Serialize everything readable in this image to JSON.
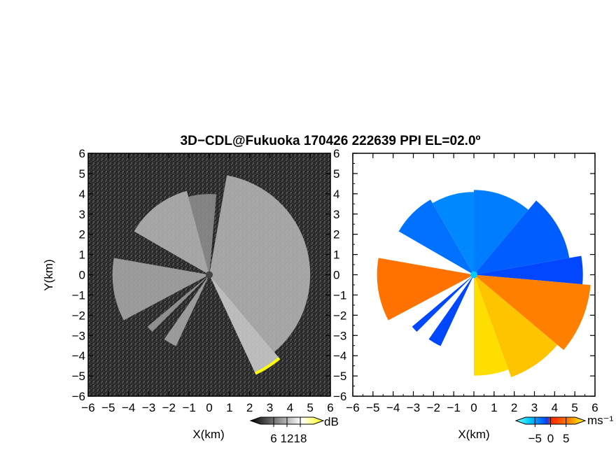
{
  "title": "3D−CDL@Fukuoka 170426 222639 PPI EL=02.0º",
  "ylabel": "Y(km)",
  "chart_data": [
    {
      "type": "heatmap",
      "panel": "left",
      "quantity": "reflectivity",
      "xlabel": "X(km)",
      "ylabel": "Y(km)",
      "xlim": [
        -6,
        6
      ],
      "ylim": [
        -6,
        6
      ],
      "x_ticks": [
        "−6",
        "−5",
        "−4",
        "−3",
        "−2",
        "−1",
        "0",
        "1",
        "2",
        "3",
        "4",
        "5",
        "6"
      ],
      "y_ticks": [
        "6",
        "5",
        "4",
        "3",
        "2",
        "1",
        "0",
        "−1",
        "−2",
        "−3",
        "−4",
        "−5",
        "−6"
      ],
      "colorbar": {
        "unit": "dB",
        "ticks": [
          "6",
          "12",
          "18"
        ],
        "tick_values": [
          6,
          12,
          18
        ],
        "range": [
          0,
          24
        ],
        "colors": [
          "#000000",
          "#ffffff",
          "#ffff00"
        ]
      },
      "sectors": [
        {
          "az_from": 10,
          "az_to": 140,
          "range_km": 5.0,
          "value_db": 14
        },
        {
          "az_from": 140,
          "az_to": 155,
          "range_km": 5.4,
          "value_db": 16
        },
        {
          "az_from": 242,
          "az_to": 280,
          "range_km": 4.8,
          "value_db": 13
        },
        {
          "az_from": 300,
          "az_to": 345,
          "range_km": 4.3,
          "value_db": 14
        },
        {
          "az_from": 345,
          "az_to": 365,
          "range_km": 4.0,
          "value_db": 11
        },
        {
          "az_from": 205,
          "az_to": 215,
          "range_km": 3.9,
          "value_db": 13
        },
        {
          "az_from": 225,
          "az_to": 230,
          "range_km": 4.0,
          "value_db": 12
        }
      ]
    },
    {
      "type": "heatmap",
      "panel": "right",
      "quantity": "doppler velocity",
      "xlabel": "X(km)",
      "xlim": [
        -6,
        6
      ],
      "ylim": [
        -6,
        6
      ],
      "x_ticks": [
        "−6",
        "−5",
        "−4",
        "−3",
        "−2",
        "−1",
        "0",
        "1",
        "2",
        "3",
        "4",
        "5",
        "6"
      ],
      "y_ticks": [
        "6",
        "5",
        "4",
        "3",
        "2",
        "1",
        "0",
        "−1",
        "−2",
        "−3",
        "−4",
        "−5",
        "−6"
      ],
      "colorbar": {
        "unit": "ms⁻¹",
        "ticks": [
          "−5",
          "0",
          "5"
        ],
        "tick_values": [
          -5,
          0,
          5
        ],
        "range": [
          -8,
          8
        ],
        "colors": [
          "#00e0ff",
          "#0050ff",
          "#ff3300",
          "#ffff00"
        ]
      },
      "sectors": [
        {
          "az_from": 300,
          "az_to": 330,
          "range_km": 4.3,
          "value_ms": -4
        },
        {
          "az_from": 330,
          "az_to": 360,
          "range_km": 4.1,
          "value_ms": -3
        },
        {
          "az_from": 0,
          "az_to": 40,
          "range_km": 4.2,
          "value_ms": -3.5
        },
        {
          "az_from": 40,
          "az_to": 80,
          "range_km": 4.8,
          "value_ms": -5
        },
        {
          "az_from": 80,
          "az_to": 95,
          "range_km": 5.4,
          "value_ms": -6
        },
        {
          "az_from": 95,
          "az_to": 130,
          "range_km": 5.8,
          "value_ms": 2.5
        },
        {
          "az_from": 130,
          "az_to": 160,
          "range_km": 5.4,
          "value_ms": 5
        },
        {
          "az_from": 160,
          "az_to": 180,
          "range_km": 5.0,
          "value_ms": 6
        },
        {
          "az_from": 242,
          "az_to": 280,
          "range_km": 4.8,
          "value_ms": 2
        },
        {
          "az_from": 205,
          "az_to": 215,
          "range_km": 3.9,
          "value_ms": -6
        },
        {
          "az_from": 225,
          "az_to": 230,
          "range_km": 4.0,
          "value_ms": -6
        }
      ]
    }
  ]
}
